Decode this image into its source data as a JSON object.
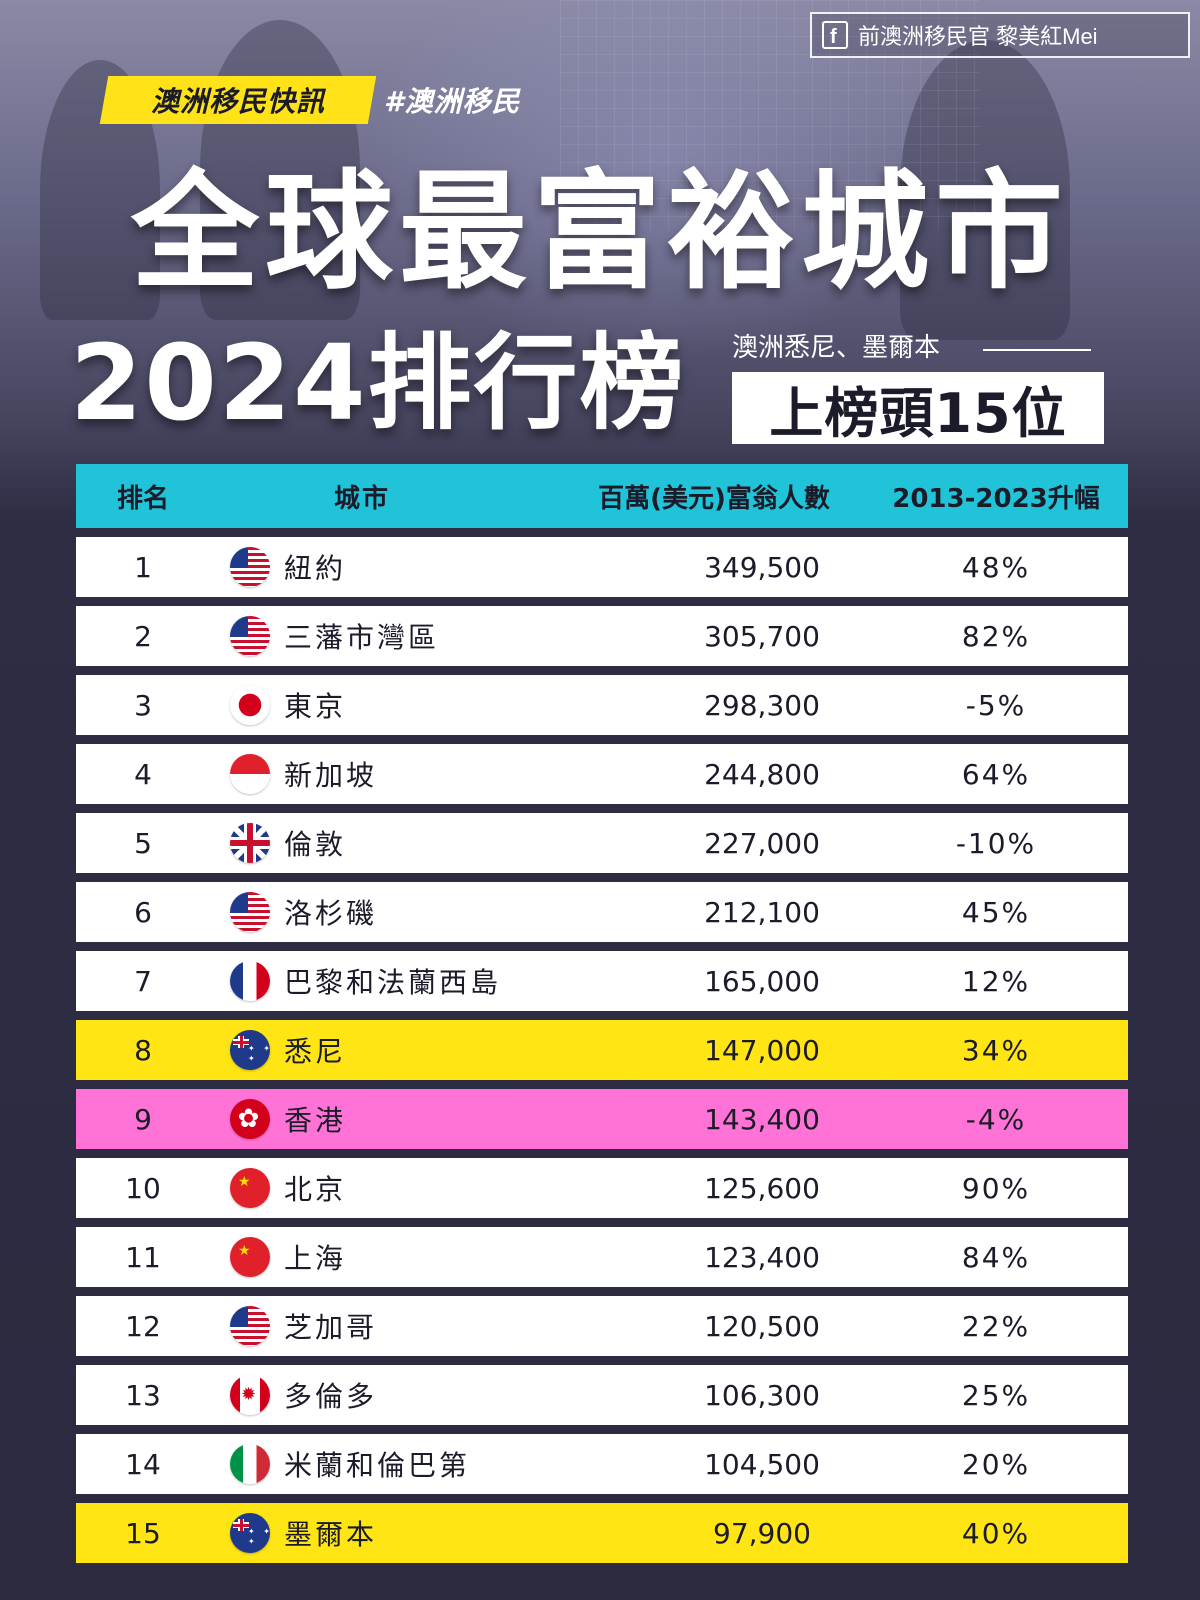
{
  "header": {
    "facebook_page": "前澳洲移民官 黎美紅Mei",
    "news_tag": "澳洲移民快訊",
    "hashtag": "#澳洲移民",
    "title_line1": "全球最富裕城市",
    "title_line2": "2024排行榜",
    "callout_sub": "澳洲悉尼、墨爾本",
    "callout_main": "上榜頭15位"
  },
  "colors": {
    "header_cyan": "#21c3d8",
    "highlight_yellow": "#ffe514",
    "highlight_pink": "#ff72d6",
    "tag_yellow": "#ffe318"
  },
  "table": {
    "headers": [
      "排名",
      "城市",
      "百萬(美元)富翁人數",
      "2013-2023升幅"
    ],
    "rows": [
      {
        "rank": "1",
        "flag": "us-flag-icon",
        "city": "紐約",
        "count": "349,500",
        "growth": "48%"
      },
      {
        "rank": "2",
        "flag": "us-flag-icon",
        "city": "三藩市灣區",
        "count": "305,700",
        "growth": "82%"
      },
      {
        "rank": "3",
        "flag": "japan-flag-icon",
        "city": "東京",
        "count": "298,300",
        "growth": "-5%"
      },
      {
        "rank": "4",
        "flag": "singapore-flag-icon",
        "city": "新加坡",
        "count": "244,800",
        "growth": "64%"
      },
      {
        "rank": "5",
        "flag": "uk-flag-icon",
        "city": "倫敦",
        "count": "227,000",
        "growth": "-10%"
      },
      {
        "rank": "6",
        "flag": "us-flag-icon",
        "city": "洛杉磯",
        "count": "212,100",
        "growth": "45%"
      },
      {
        "rank": "7",
        "flag": "france-flag-icon",
        "city": "巴黎和法蘭西島",
        "count": "165,000",
        "growth": "12%"
      },
      {
        "rank": "8",
        "flag": "australia-flag-icon",
        "city": "悉尼",
        "count": "147,000",
        "growth": "34%"
      },
      {
        "rank": "9",
        "flag": "hong-kong-flag-icon",
        "city": "香港",
        "count": "143,400",
        "growth": "-4%"
      },
      {
        "rank": "10",
        "flag": "china-flag-icon",
        "city": "北京",
        "count": "125,600",
        "growth": "90%"
      },
      {
        "rank": "11",
        "flag": "china-flag-icon",
        "city": "上海",
        "count": "123,400",
        "growth": "84%"
      },
      {
        "rank": "12",
        "flag": "us-flag-icon",
        "city": "芝加哥",
        "count": "120,500",
        "growth": "22%"
      },
      {
        "rank": "13",
        "flag": "canada-flag-icon",
        "city": "多倫多",
        "count": "106,300",
        "growth": "25%"
      },
      {
        "rank": "14",
        "flag": "italy-flag-icon",
        "city": "米蘭和倫巴第",
        "count": "104,500",
        "growth": "20%"
      },
      {
        "rank": "15",
        "flag": "australia-flag-icon",
        "city": "墨爾本",
        "count": "97,900",
        "growth": "40%"
      }
    ]
  }
}
